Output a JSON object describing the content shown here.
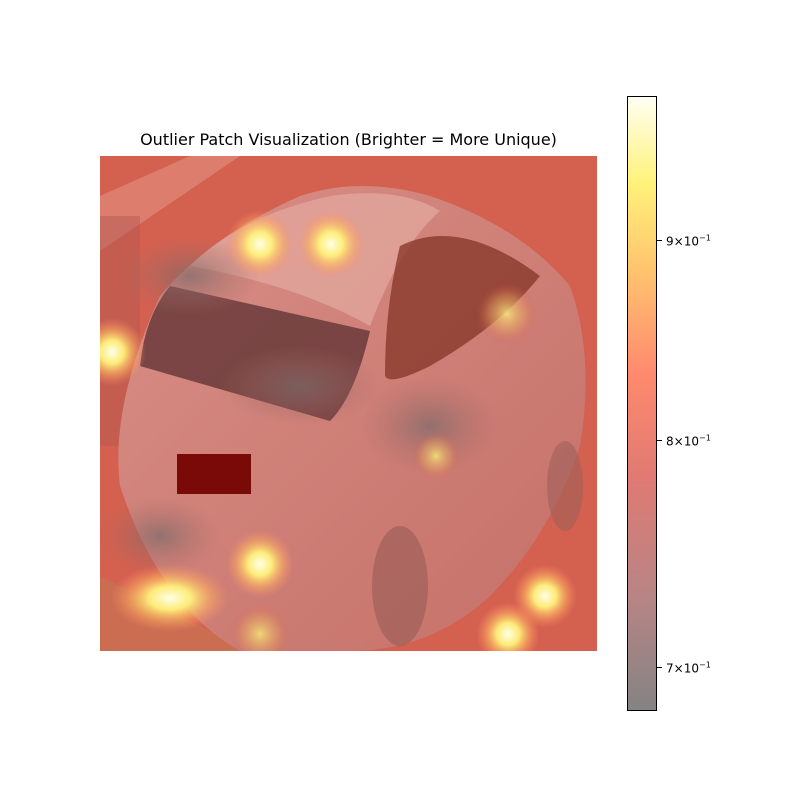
{
  "figure": {
    "title": "Outlier Patch Visualization (Brighter = More Unique)"
  },
  "image": {
    "subject": "silver hatchback car, rear three-quarter top view",
    "colormap": "hot",
    "overlay_alpha": 0.5
  },
  "colorbar": {
    "scale": "log",
    "range": [
      0.68,
      0.97
    ],
    "ticks": [
      {
        "base": "9",
        "mult": "×",
        "ten": "10",
        "exp": "−1",
        "value": 0.9
      },
      {
        "base": "8",
        "mult": "×",
        "ten": "10",
        "exp": "−1",
        "value": 0.8
      },
      {
        "base": "7",
        "mult": "×",
        "ten": "10",
        "exp": "−1",
        "value": 0.7
      }
    ],
    "colors": {
      "low": "#858383",
      "mid": "#ff8a6e",
      "high": "#fffff2"
    }
  }
}
